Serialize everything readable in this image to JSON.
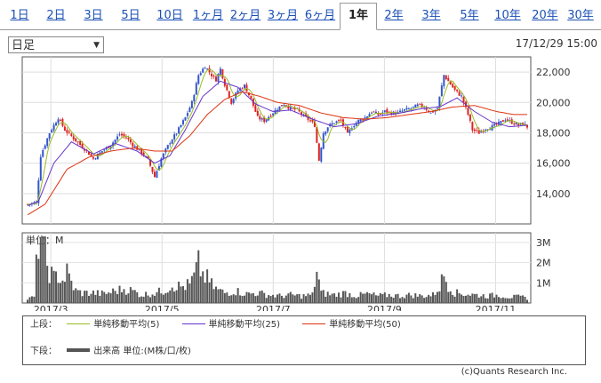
{
  "tabs": [
    "1日",
    "2日",
    "3日",
    "5日",
    "10日",
    "1ヶ月",
    "2ヶ月",
    "3ヶ月",
    "6ヶ月",
    "1年",
    "2年",
    "3年",
    "5年",
    "10年",
    "20年",
    "30年"
  ],
  "active_tab": "1年",
  "period_select": "日足",
  "datetime": "17/12/29 15:00",
  "legend": {
    "upper_label": "上段：",
    "lower_label": "下段：",
    "ma5": "単純移動平均(5)",
    "ma25": "単純移動平均(25)",
    "ma50": "単純移動平均(50)",
    "volume": "出来高 単位:(M株/口/枚)"
  },
  "credit": "(c)Quants Research Inc.",
  "colors": {
    "up": "#3355cc",
    "down": "#dd2222",
    "ma5": "#99bb22",
    "ma25": "#6633cc",
    "ma50": "#dd3311",
    "volume": "#555555"
  },
  "chart_data": [
    {
      "type": "candlestick",
      "x_labels": [
        "2017/3",
        "2017/5",
        "2017/7",
        "2017/9",
        "2017/11"
      ],
      "x_label_positions": [
        9,
        52,
        95,
        138,
        181
      ],
      "ylim": [
        12000,
        23000
      ],
      "yticks": [
        14000,
        16000,
        18000,
        20000,
        22000
      ],
      "ytick_labels": [
        "14,000",
        "16,000",
        "18,000",
        "20,000",
        "22,000"
      ],
      "close_keypoints": [
        [
          0,
          13300
        ],
        [
          4,
          13400
        ],
        [
          6,
          16500
        ],
        [
          10,
          18000
        ],
        [
          14,
          19000
        ],
        [
          17,
          18200
        ],
        [
          22,
          17500
        ],
        [
          27,
          16800
        ],
        [
          30,
          16300
        ],
        [
          34,
          16800
        ],
        [
          38,
          17200
        ],
        [
          42,
          17900
        ],
        [
          45,
          17700
        ],
        [
          48,
          17200
        ],
        [
          52,
          16700
        ],
        [
          55,
          16200
        ],
        [
          58,
          15100
        ],
        [
          61,
          16300
        ],
        [
          65,
          17400
        ],
        [
          68,
          18000
        ],
        [
          72,
          19000
        ],
        [
          75,
          20000
        ],
        [
          78,
          21800
        ],
        [
          81,
          22400
        ],
        [
          84,
          21800
        ],
        [
          86,
          21500
        ],
        [
          88,
          22200
        ],
        [
          90,
          21200
        ],
        [
          93,
          20000
        ],
        [
          96,
          20800
        ],
        [
          99,
          21100
        ],
        [
          102,
          20200
        ],
        [
          105,
          19000
        ],
        [
          108,
          18800
        ],
        [
          111,
          19200
        ],
        [
          114,
          19600
        ],
        [
          117,
          19900
        ],
        [
          120,
          19600
        ],
        [
          123,
          19500
        ],
        [
          126,
          19100
        ],
        [
          129,
          18800
        ],
        [
          131,
          18500
        ],
        [
          133,
          16200
        ],
        [
          135,
          18000
        ],
        [
          137,
          18400
        ],
        [
          140,
          18700
        ],
        [
          143,
          18800
        ],
        [
          146,
          17900
        ],
        [
          148,
          18400
        ],
        [
          151,
          18800
        ],
        [
          154,
          19000
        ],
        [
          157,
          19400
        ],
        [
          160,
          19200
        ],
        [
          163,
          19400
        ],
        [
          166,
          19300
        ],
        [
          169,
          19300
        ],
        [
          172,
          19500
        ],
        [
          175,
          19600
        ],
        [
          178,
          19800
        ],
        [
          181,
          19700
        ],
        [
          184,
          19300
        ],
        [
          187,
          19600
        ],
        [
          190,
          21800
        ],
        [
          192,
          21400
        ],
        [
          195,
          20800
        ],
        [
          198,
          20400
        ],
        [
          201,
          19200
        ],
        [
          203,
          18200
        ],
        [
          206,
          18000
        ],
        [
          209,
          18300
        ],
        [
          212,
          18400
        ],
        [
          215,
          18600
        ],
        [
          218,
          18900
        ],
        [
          221,
          18700
        ],
        [
          224,
          18500
        ],
        [
          226,
          18600
        ],
        [
          228,
          18400
        ]
      ],
      "ma25_keypoints": [
        [
          0,
          13200
        ],
        [
          5,
          13500
        ],
        [
          12,
          16000
        ],
        [
          20,
          17400
        ],
        [
          30,
          16600
        ],
        [
          40,
          17300
        ],
        [
          50,
          16800
        ],
        [
          58,
          16000
        ],
        [
          65,
          16500
        ],
        [
          72,
          18200
        ],
        [
          80,
          20400
        ],
        [
          88,
          21400
        ],
        [
          96,
          21000
        ],
        [
          104,
          19900
        ],
        [
          112,
          19400
        ],
        [
          120,
          19500
        ],
        [
          130,
          18900
        ],
        [
          140,
          18400
        ],
        [
          150,
          18600
        ],
        [
          160,
          19100
        ],
        [
          170,
          19300
        ],
        [
          180,
          19600
        ],
        [
          188,
          19700
        ],
        [
          196,
          20300
        ],
        [
          204,
          19400
        ],
        [
          212,
          18700
        ],
        [
          220,
          18400
        ],
        [
          228,
          18500
        ]
      ],
      "ma50_keypoints": [
        [
          0,
          12600
        ],
        [
          8,
          13300
        ],
        [
          18,
          15600
        ],
        [
          28,
          16400
        ],
        [
          38,
          16800
        ],
        [
          48,
          17000
        ],
        [
          58,
          16800
        ],
        [
          66,
          16800
        ],
        [
          74,
          17800
        ],
        [
          82,
          19200
        ],
        [
          90,
          20200
        ],
        [
          98,
          20700
        ],
        [
          106,
          20400
        ],
        [
          114,
          20000
        ],
        [
          124,
          19800
        ],
        [
          134,
          19300
        ],
        [
          144,
          19000
        ],
        [
          154,
          18900
        ],
        [
          164,
          19000
        ],
        [
          174,
          19200
        ],
        [
          184,
          19400
        ],
        [
          194,
          19700
        ],
        [
          204,
          19800
        ],
        [
          214,
          19400
        ],
        [
          222,
          19200
        ],
        [
          228,
          19200
        ]
      ]
    },
    {
      "type": "bar",
      "title": "単位：M",
      "ylim": [
        0,
        3.3
      ],
      "yticks": [
        1,
        2,
        3
      ],
      "ytick_labels": [
        "1M",
        "2M",
        "3M"
      ],
      "volume_keypoints": [
        [
          0,
          0.2
        ],
        [
          3,
          0.3
        ],
        [
          5,
          3.2
        ],
        [
          6,
          3.3
        ],
        [
          7,
          3.0
        ],
        [
          8,
          2.4
        ],
        [
          9,
          1.9
        ],
        [
          10,
          1.6
        ],
        [
          11,
          1.4
        ],
        [
          12,
          1.2
        ],
        [
          14,
          1.4
        ],
        [
          16,
          1.1
        ],
        [
          18,
          1.5
        ],
        [
          20,
          1.0
        ],
        [
          22,
          0.6
        ],
        [
          25,
          0.5
        ],
        [
          30,
          0.5
        ],
        [
          35,
          0.45
        ],
        [
          40,
          0.6
        ],
        [
          44,
          0.7
        ],
        [
          48,
          0.6
        ],
        [
          52,
          0.4
        ],
        [
          58,
          0.5
        ],
        [
          62,
          0.6
        ],
        [
          66,
          0.9
        ],
        [
          70,
          0.8
        ],
        [
          74,
          0.9
        ],
        [
          76,
          1.3
        ],
        [
          78,
          1.9
        ],
        [
          80,
          1.4
        ],
        [
          82,
          1.2
        ],
        [
          84,
          0.9
        ],
        [
          86,
          0.7
        ],
        [
          88,
          0.6
        ],
        [
          90,
          0.5
        ],
        [
          95,
          0.6
        ],
        [
          100,
          0.45
        ],
        [
          105,
          0.5
        ],
        [
          110,
          0.4
        ],
        [
          115,
          0.35
        ],
        [
          120,
          0.4
        ],
        [
          125,
          0.35
        ],
        [
          130,
          0.4
        ],
        [
          132,
          1.6
        ],
        [
          134,
          0.5
        ],
        [
          140,
          0.4
        ],
        [
          145,
          0.5
        ],
        [
          150,
          0.35
        ],
        [
          155,
          0.45
        ],
        [
          160,
          0.35
        ],
        [
          165,
          0.4
        ],
        [
          170,
          0.35
        ],
        [
          175,
          0.4
        ],
        [
          180,
          0.35
        ],
        [
          185,
          0.4
        ],
        [
          188,
          0.8
        ],
        [
          190,
          1.4
        ],
        [
          192,
          0.9
        ],
        [
          195,
          0.5
        ],
        [
          200,
          0.45
        ],
        [
          205,
          0.4
        ],
        [
          210,
          0.35
        ],
        [
          215,
          0.4
        ],
        [
          220,
          0.3
        ],
        [
          225,
          0.3
        ],
        [
          228,
          0.25
        ]
      ]
    }
  ]
}
